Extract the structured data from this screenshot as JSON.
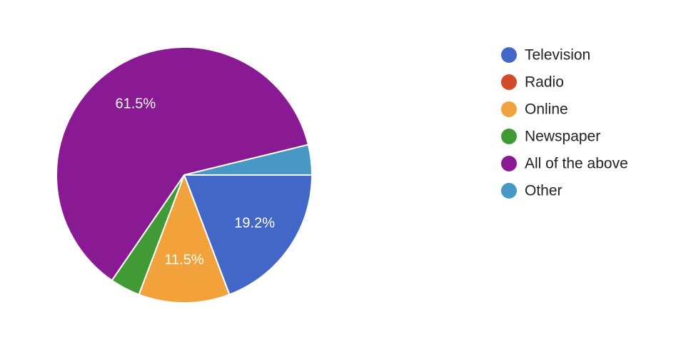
{
  "chart_data": {
    "type": "pie",
    "categories": [
      "Television",
      "Radio",
      "Online",
      "Newspaper",
      "All of the above",
      "Other"
    ],
    "values": [
      19.2,
      0,
      11.5,
      3.8,
      61.5,
      3.8
    ],
    "value_labels": [
      "19.2%",
      null,
      "11.5%",
      null,
      "61.5%",
      null
    ],
    "colors": [
      "#4366c9",
      "#d24a27",
      "#f1a23a",
      "#429a37",
      "#8a1a93",
      "#4798c5"
    ],
    "legend": "right"
  }
}
